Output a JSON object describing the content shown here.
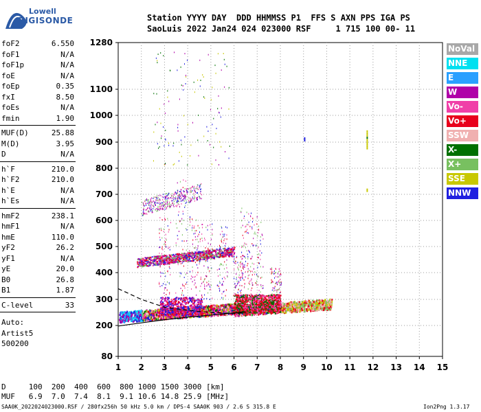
{
  "logo": {
    "line1": "Lowell",
    "line2": "DIGISONDE"
  },
  "header": {
    "line1": "Station YYYY DAY  DDD HHMMSS P1  FFS S AXN PPS IGA PS",
    "line2": "SaoLuis 2022 Jan24 024 023000 RSF     1 715 100 00- 11"
  },
  "params": {
    "block1": [
      {
        "k": "foF2",
        "v": "6.550"
      },
      {
        "k": "foF1",
        "v": "N/A"
      },
      {
        "k": "foF1p",
        "v": "N/A"
      },
      {
        "k": "foE",
        "v": "N/A"
      },
      {
        "k": "foEp",
        "v": "0.35"
      },
      {
        "k": "fxI",
        "v": "8.50"
      },
      {
        "k": "foEs",
        "v": "N/A"
      },
      {
        "k": "fmin",
        "v": "1.90"
      }
    ],
    "block2": [
      {
        "k": "MUF(D)",
        "v": "25.88"
      },
      {
        "k": "M(D)",
        "v": "3.95"
      },
      {
        "k": "D",
        "v": "N/A"
      }
    ],
    "block3": [
      {
        "k": "h`F",
        "v": "210.0"
      },
      {
        "k": "h`F2",
        "v": "210.0"
      },
      {
        "k": "h`E",
        "v": "N/A"
      },
      {
        "k": "h`Es",
        "v": "N/A"
      }
    ],
    "block4": [
      {
        "k": "hmF2",
        "v": "238.1"
      },
      {
        "k": "hmF1",
        "v": "N/A"
      },
      {
        "k": "hmE",
        "v": "110.0"
      },
      {
        "k": "yF2",
        "v": "26.2"
      },
      {
        "k": "yF1",
        "v": "N/A"
      },
      {
        "k": "yE",
        "v": "20.0"
      },
      {
        "k": "B0",
        "v": "26.8"
      },
      {
        "k": "B1",
        "v": "1.87"
      }
    ],
    "block5": [
      {
        "k": "C-level",
        "v": "33"
      }
    ],
    "auto": [
      "Auto:",
      "Artist5",
      "500200"
    ]
  },
  "legend": [
    {
      "label": "NoVal",
      "color": "#a8a8a8"
    },
    {
      "label": "NNE",
      "color": "#00e0f0"
    },
    {
      "label": "E",
      "color": "#2aa0ff"
    },
    {
      "label": "W",
      "color": "#b000a8"
    },
    {
      "label": "Vo-",
      "color": "#f040a8"
    },
    {
      "label": "Vo+",
      "color": "#e8001c"
    },
    {
      "label": "SSW",
      "color": "#f0b0b0"
    },
    {
      "label": "X-",
      "color": "#007000"
    },
    {
      "label": "X+",
      "color": "#78c060"
    },
    {
      "label": "SSE",
      "color": "#c8c800"
    },
    {
      "label": "NNW",
      "color": "#2020e0"
    }
  ],
  "footer": {
    "d_row": "D     100  200  400  600  800 1000 1500 3000 [km]",
    "muf_row": "MUF   6.9  7.0  7.4  8.1  9.1 10.6 14.8 25.9 [MHz]",
    "file_info": "SAA0K_2022024023000.RSF / 280fx256h 50 kHz 5.0 km / DPS-4 SAA0K 903 / 2.6 S 315.8 E",
    "version": "Ion2Png 1.3.17"
  },
  "chart_data": {
    "type": "scatter",
    "x": [
      1,
      15
    ],
    "y_ticks": [
      80,
      200,
      300,
      400,
      500,
      600,
      700,
      800,
      900,
      1000,
      1100,
      1280
    ],
    "x_ticks": [
      1,
      2,
      3,
      4,
      5,
      6,
      7,
      8,
      9,
      10,
      11,
      12,
      13,
      14,
      15
    ],
    "xlim": [
      1,
      15
    ],
    "ylim": [
      80,
      1280
    ],
    "y_scale": "log-like (pseudo log)",
    "grid": true,
    "traces": [
      {
        "name": "F2 O-trace (red/magenta)",
        "points": [
          [
            1.0,
            235
          ],
          [
            2.0,
            240
          ],
          [
            3.0,
            245
          ],
          [
            4.0,
            250
          ],
          [
            5.0,
            255
          ],
          [
            6.0,
            258
          ],
          [
            6.5,
            262
          ],
          [
            7.0,
            268
          ],
          [
            7.5,
            272
          ],
          [
            8.0,
            275
          ],
          [
            8.5,
            278
          ],
          [
            9.0,
            282
          ],
          [
            9.5,
            285
          ],
          [
            10.0,
            282
          ]
        ]
      },
      {
        "name": "Second hop (magenta)",
        "points": [
          [
            1.8,
            445
          ],
          [
            2.5,
            450
          ],
          [
            3.0,
            455
          ],
          [
            3.5,
            458
          ],
          [
            4.0,
            462
          ],
          [
            4.5,
            470
          ],
          [
            5.0,
            475
          ],
          [
            5.5,
            480
          ],
          [
            6.0,
            490
          ]
        ]
      },
      {
        "name": "Third hop (magenta)",
        "points": [
          [
            2.0,
            655
          ],
          [
            2.5,
            660
          ],
          [
            3.0,
            680
          ],
          [
            3.5,
            695
          ],
          [
            4.0,
            710
          ],
          [
            4.5,
            720
          ]
        ]
      }
    ],
    "profile_curves": [
      {
        "style": "solid",
        "points": [
          [
            1.0,
            198
          ],
          [
            2.0,
            210
          ],
          [
            3.0,
            222
          ],
          [
            4.0,
            232
          ],
          [
            5.0,
            240
          ],
          [
            6.0,
            248
          ],
          [
            6.5,
            252
          ]
        ]
      },
      {
        "style": "dashed",
        "points": [
          [
            1.0,
            340
          ],
          [
            1.5,
            320
          ],
          [
            2.0,
            300
          ],
          [
            2.5,
            285
          ],
          [
            3.0,
            270
          ],
          [
            4.0,
            258
          ],
          [
            5.0,
            250
          ],
          [
            6.0,
            246
          ],
          [
            6.5,
            248
          ]
        ]
      }
    ]
  }
}
